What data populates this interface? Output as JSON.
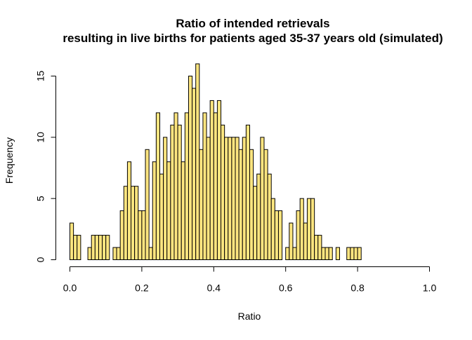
{
  "chart_data": {
    "type": "bar",
    "subtype": "histogram",
    "title_line1": "Ratio of intended retrievals",
    "title_line2": "resulting in live births for patients aged 35-37 years old (simulated)",
    "xlabel": "Ratio",
    "ylabel": "Frequency",
    "xlim": [
      0.0,
      1.0
    ],
    "ylim": [
      0,
      16
    ],
    "bin_width": 0.01,
    "bin_start": 0.0,
    "x_ticks": [
      0.0,
      0.2,
      0.4,
      0.6,
      0.8,
      1.0
    ],
    "x_tick_labels": [
      "0.0",
      "0.2",
      "0.4",
      "0.6",
      "0.8",
      "1.0"
    ],
    "y_ticks": [
      0,
      5,
      10,
      15
    ],
    "y_tick_labels": [
      "0",
      "5",
      "10",
      "15"
    ],
    "bar_fill": "#ffe680",
    "bar_stroke": "#000000",
    "values": [
      3,
      2,
      2,
      0,
      0,
      1,
      2,
      2,
      2,
      2,
      2,
      0,
      1,
      1,
      4,
      6,
      8,
      6,
      6,
      4,
      4,
      9,
      1,
      8,
      12,
      7,
      10,
      8,
      11,
      12,
      11,
      8,
      12,
      15,
      14,
      16,
      9,
      12,
      10,
      13,
      12,
      13,
      11,
      10,
      10,
      10,
      10,
      9,
      10,
      11,
      9,
      6,
      7,
      10,
      9,
      7,
      5,
      4,
      4,
      0,
      1,
      3,
      1,
      4,
      5,
      3,
      5,
      5,
      2,
      2,
      1,
      1,
      1,
      0,
      1,
      0,
      0,
      1,
      1,
      1,
      1
    ]
  }
}
